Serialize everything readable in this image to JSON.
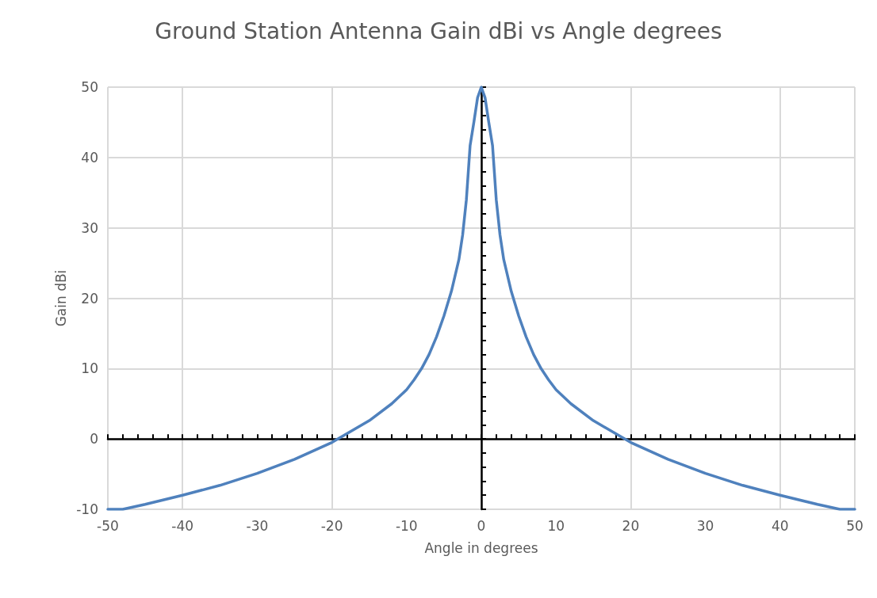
{
  "chart_data": {
    "type": "line",
    "title": "Ground Station Antenna Gain dBi vs Angle degrees",
    "xlabel": "Angle in degrees",
    "ylabel": "Gain dBi",
    "x": [
      -50,
      -48,
      -45,
      -40,
      -35,
      -30,
      -25,
      -20,
      -15,
      -12,
      -10,
      -9,
      -8,
      -7,
      -6,
      -5,
      -4,
      -3,
      -2.5,
      -2,
      -1.5,
      -1,
      -0.5,
      0,
      0.5,
      1,
      1.5,
      2,
      2.5,
      3,
      4,
      5,
      6,
      7,
      8,
      9,
      10,
      12,
      15,
      20,
      25,
      30,
      35,
      40,
      45,
      48,
      50
    ],
    "series": [
      {
        "color": "#4f81bd",
        "values": [
          -10,
          -10,
          -9.3,
          -8,
          -6.6,
          -4.9,
          -2.9,
          -0.5,
          2.6,
          5,
          7,
          8.4,
          10,
          12,
          14.5,
          17.5,
          21,
          25.5,
          29,
          34,
          41.7,
          45,
          48.5,
          50,
          48.5,
          45,
          41.7,
          34,
          29,
          25.5,
          21,
          17.5,
          14.5,
          12,
          10,
          8.4,
          7,
          5,
          2.6,
          -0.5,
          -2.9,
          -4.9,
          -6.6,
          -8,
          -9.3,
          -10,
          -10
        ]
      }
    ],
    "xlim": [
      -50,
      50
    ],
    "xticks": [
      -50,
      -40,
      -30,
      -20,
      -10,
      0,
      10,
      20,
      30,
      40,
      50
    ],
    "ylim": [
      -10,
      50
    ],
    "yticks": [
      -10,
      0,
      10,
      20,
      30,
      40,
      50
    ],
    "grid": true,
    "marker": "none",
    "line_style": "solid"
  }
}
